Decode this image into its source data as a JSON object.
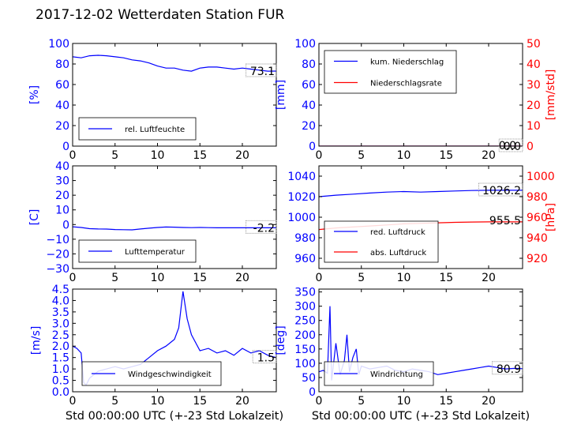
{
  "title": "2017-12-02 Wetterdaten Station FUR",
  "colors": {
    "left_axis": "#0000ff",
    "right_axis": "#ff0000",
    "series_blue": "#0000ff",
    "series_red": "#ff0000",
    "frame": "#000000"
  },
  "chart_data": [
    {
      "id": "humidity",
      "type": "line",
      "xlim": [
        0,
        24
      ],
      "xticks": [
        "0",
        "5",
        "10",
        "15",
        "20"
      ],
      "ylim": [
        0,
        100
      ],
      "yticks": [
        "0",
        "20",
        "40",
        "60",
        "80",
        "100"
      ],
      "ylabel": "[%]",
      "xlabel": "",
      "legend_position": "lower-left",
      "value_label": "73.1",
      "series": [
        {
          "name": "rel. Luftfeuchte",
          "color": "#0000ff",
          "axis": "left",
          "x": [
            0,
            1,
            2,
            3,
            4,
            5,
            6,
            7,
            8,
            9,
            10,
            11,
            12,
            13,
            14,
            15,
            16,
            17,
            18,
            19,
            20,
            21,
            22,
            23,
            24
          ],
          "y": [
            87,
            86,
            88,
            88.5,
            88,
            87,
            86,
            84,
            83,
            81,
            78,
            76,
            76,
            74,
            73,
            76,
            77,
            77,
            76,
            75,
            76,
            75,
            74,
            73,
            73.1
          ]
        }
      ]
    },
    {
      "id": "precipitation",
      "type": "line",
      "xlim": [
        0,
        24
      ],
      "xticks": [
        "0",
        "5",
        "10",
        "15",
        "20"
      ],
      "ylim": [
        0,
        100
      ],
      "yticks": [
        "0",
        "20",
        "40",
        "60",
        "80",
        "100"
      ],
      "ylabel": "[mm]",
      "y2lim": [
        0,
        50
      ],
      "y2ticks": [
        "0",
        "10",
        "20",
        "30",
        "40",
        "50"
      ],
      "y2label": "[mm/std]",
      "xlabel": "",
      "legend_position": "upper-left",
      "value_label": "0.0",
      "value_label_2": "0.0",
      "series": [
        {
          "name": "kum. Niederschlag",
          "color": "#0000ff",
          "axis": "left",
          "x": [
            0,
            24
          ],
          "y": [
            0,
            0
          ]
        },
        {
          "name": "Niederschlagsrate",
          "color": "#ff0000",
          "axis": "right",
          "x": [
            0,
            24
          ],
          "y": [
            0,
            0
          ]
        }
      ]
    },
    {
      "id": "temperature",
      "type": "line",
      "xlim": [
        0,
        24
      ],
      "xticks": [
        "0",
        "5",
        "10",
        "15",
        "20"
      ],
      "ylim": [
        -30,
        40
      ],
      "yticks": [
        "−30",
        "−20",
        "−10",
        "0",
        "10",
        "20",
        "30",
        "40"
      ],
      "ylabel": "[C]",
      "xlabel": "",
      "legend_position": "lower-left",
      "value_label": "-2.2",
      "series": [
        {
          "name": "Lufttemperatur",
          "color": "#0000ff",
          "axis": "left",
          "x": [
            0,
            1,
            2,
            3,
            4,
            5,
            6,
            7,
            8,
            9,
            10,
            11,
            12,
            13,
            14,
            15,
            16,
            17,
            18,
            19,
            20,
            21,
            22,
            23,
            24
          ],
          "y": [
            -1.5,
            -2,
            -2.8,
            -3,
            -3.1,
            -3.4,
            -3.5,
            -3.6,
            -3,
            -2.5,
            -2,
            -1.7,
            -1.8,
            -2,
            -2.1,
            -2,
            -2.1,
            -2.2,
            -2.2,
            -2.2,
            -2.2,
            -2.2,
            -2.2,
            -2.2,
            -2.2
          ]
        }
      ]
    },
    {
      "id": "pressure",
      "type": "line",
      "xlim": [
        0,
        24
      ],
      "xticks": [
        "0",
        "5",
        "10",
        "15",
        "20"
      ],
      "ylim": [
        950,
        1050
      ],
      "yticks": [
        "960",
        "980",
        "1000",
        "1020",
        "1040"
      ],
      "ylabel": "",
      "y2lim": [
        910,
        1010
      ],
      "y2ticks": [
        "920",
        "940",
        "960",
        "980",
        "1000"
      ],
      "y2label": "[hPa]",
      "xlabel": "",
      "legend_position": "lower-left",
      "value_label": "1026.2",
      "value_label_2": "955.5",
      "series": [
        {
          "name": "red. Luftdruck",
          "color": "#0000ff",
          "axis": "left",
          "x": [
            0,
            2,
            4,
            6,
            8,
            10,
            12,
            14,
            16,
            18,
            20,
            22,
            24
          ],
          "y": [
            1020,
            1021.5,
            1022.5,
            1023.5,
            1024.5,
            1025,
            1024.5,
            1025,
            1025.5,
            1026,
            1026.2,
            1026.2,
            1026.2
          ]
        },
        {
          "name": "abs. Luftdruck",
          "color": "#ff0000",
          "axis": "right",
          "x": [
            0,
            2,
            4,
            6,
            8,
            10,
            12,
            14,
            16,
            18,
            20,
            22,
            24
          ],
          "y": [
            948,
            949.5,
            950.5,
            951.5,
            952.5,
            953.5,
            954,
            954.5,
            955,
            955.3,
            955.5,
            955.5,
            955.5
          ]
        }
      ]
    },
    {
      "id": "windspeed",
      "type": "line",
      "xlim": [
        0,
        24
      ],
      "xticks": [
        "0",
        "5",
        "10",
        "15",
        "20"
      ],
      "ylim": [
        0,
        4.5
      ],
      "yticks": [
        "0.0",
        "0.5",
        "1.0",
        "1.5",
        "2.0",
        "2.5",
        "3.0",
        "3.5",
        "4.0",
        "4.5"
      ],
      "ylabel": "[m/s]",
      "xlabel": "Std 00:00:00 UTC (+-23 Std Lokalzeit)",
      "legend_position": "lower-center",
      "value_label": "1.5",
      "series": [
        {
          "name": "Windgeschwindigkeit",
          "color": "#0000ff",
          "axis": "left",
          "x": [
            0,
            0.5,
            1,
            1.3,
            1.6,
            2,
            3,
            4,
            5,
            6,
            7,
            8,
            9,
            10,
            11,
            12,
            12.5,
            13,
            13.5,
            14,
            15,
            16,
            17,
            18,
            19,
            20,
            21,
            22,
            23,
            24
          ],
          "y": [
            2.0,
            1.9,
            1.7,
            0.4,
            0.3,
            0.6,
            0.9,
            1.0,
            1.1,
            1.0,
            1.1,
            1.2,
            1.5,
            1.8,
            2.0,
            2.3,
            2.8,
            4.4,
            3.2,
            2.5,
            1.8,
            1.9,
            1.7,
            1.8,
            1.6,
            1.9,
            1.7,
            1.8,
            1.6,
            1.5
          ]
        }
      ]
    },
    {
      "id": "winddirection",
      "type": "line",
      "xlim": [
        0,
        24
      ],
      "xticks": [
        "0",
        "5",
        "10",
        "15",
        "20"
      ],
      "ylim": [
        0,
        360
      ],
      "yticks": [
        "0",
        "50",
        "100",
        "150",
        "200",
        "250",
        "300",
        "350"
      ],
      "ylabel": "[deg]",
      "xlabel": "Std 00:00:00 UTC (+-23 Std Lokalzeit)",
      "legend_position": "lower-left",
      "value_label": "80.9",
      "series": [
        {
          "name": "Windrichtung",
          "color": "#0000ff",
          "axis": "left",
          "x": [
            0,
            0.5,
            1,
            1.3,
            1.5,
            2,
            2.5,
            3,
            3.3,
            3.6,
            4,
            4.4,
            4.7,
            5,
            6,
            7,
            8,
            9,
            10,
            11,
            12,
            13,
            14,
            15,
            16,
            17,
            18,
            19,
            20,
            21,
            22,
            23,
            24
          ],
          "y": [
            70,
            75,
            65,
            300,
            40,
            170,
            60,
            110,
            200,
            70,
            120,
            150,
            60,
            90,
            80,
            85,
            90,
            75,
            70,
            80,
            75,
            70,
            60,
            65,
            70,
            75,
            80,
            85,
            90,
            85,
            80,
            82,
            80.9
          ]
        }
      ]
    }
  ]
}
